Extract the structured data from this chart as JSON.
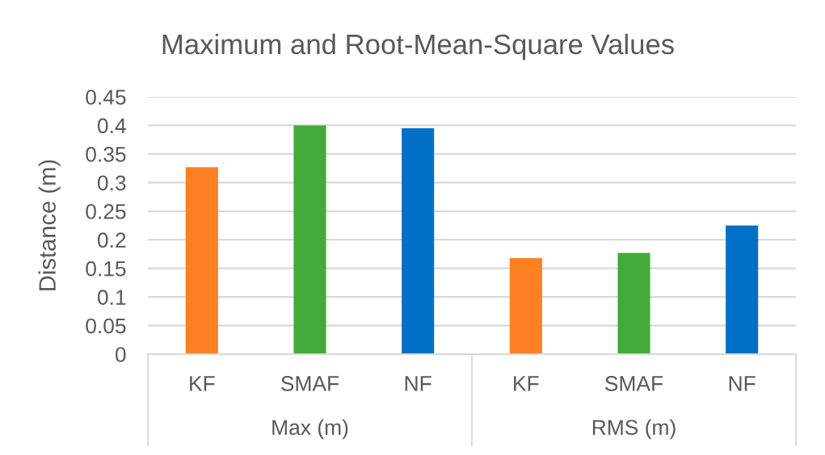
{
  "chart_data": {
    "type": "bar",
    "title": "Maximum and Root-Mean-Square Values",
    "ylabel": "Distance (m)",
    "categories": [
      "KF",
      "SMAF",
      "NF",
      "KF",
      "SMAF",
      "NF"
    ],
    "values": [
      0.327,
      0.4,
      0.395,
      0.168,
      0.177,
      0.225
    ],
    "colors": [
      "#ff7f22",
      "#43ab3b",
      "#0070c6",
      "#ff7f22",
      "#43ab3b",
      "#0070c6"
    ],
    "annotations": [
      "Max (m)",
      "RMS (m)"
    ],
    "ylim": [
      0,
      0.45
    ],
    "yticks": [
      0,
      0.05,
      0.1,
      0.15,
      0.2,
      0.25,
      0.3,
      0.35,
      0.4,
      0.45
    ],
    "grid": "y"
  }
}
